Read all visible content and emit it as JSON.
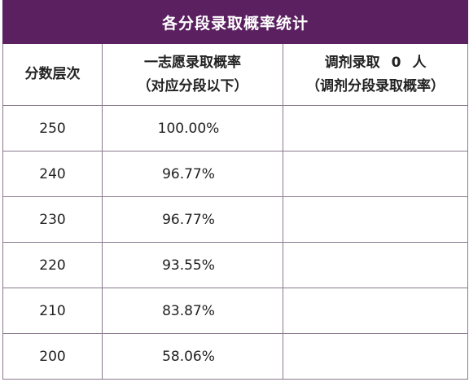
{
  "title": "各分段录取概率统计",
  "headers": {
    "col1": "分数层次",
    "col2_line1": "一志愿录取概率",
    "col2_line2": "（对应分段以下）",
    "col3_prefix": "调剂录取",
    "col3_count": "0",
    "col3_suffix": "人",
    "col3_line2": "（调剂分段录取概率）"
  },
  "rows": [
    {
      "score": "250",
      "prob": "100.00%",
      "adjust": ""
    },
    {
      "score": "240",
      "prob": "96.77%",
      "adjust": ""
    },
    {
      "score": "230",
      "prob": "96.77%",
      "adjust": ""
    },
    {
      "score": "220",
      "prob": "93.55%",
      "adjust": ""
    },
    {
      "score": "210",
      "prob": "83.87%",
      "adjust": ""
    },
    {
      "score": "200",
      "prob": "58.06%",
      "adjust": ""
    }
  ],
  "colors": {
    "header_bg": "#5a2060",
    "header_text": "#ffffff",
    "border": "#8a7a8e"
  }
}
